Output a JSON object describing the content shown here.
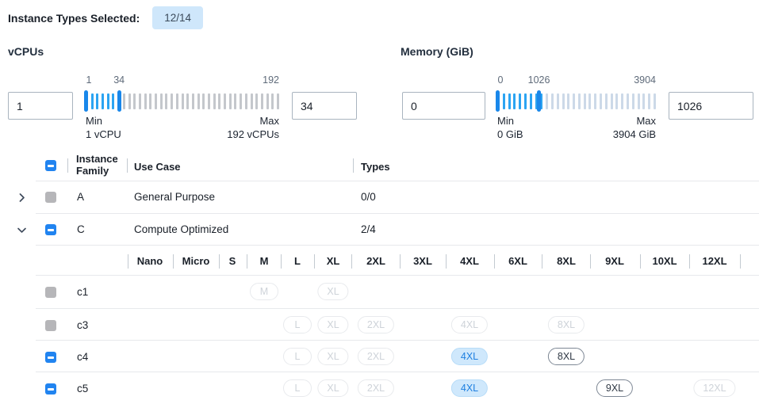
{
  "header": {
    "label": "Instance Types Selected:",
    "badge": "12/14"
  },
  "filters": {
    "vcpus": {
      "title": "vCPUs",
      "lower_value": "1",
      "upper_value": "34",
      "slider": {
        "min": 1,
        "max": 192,
        "lower": 1,
        "upper": 34,
        "labels": {
          "lower": "1",
          "upper": "34",
          "max": "192"
        }
      },
      "min_label": "Min",
      "min_sub": "1 vCPU",
      "max_label": "Max",
      "max_sub": "192 vCPUs"
    },
    "memory": {
      "title": "Memory (GiB)",
      "lower_value": "0",
      "upper_value": "1026",
      "slider": {
        "min": 0,
        "max": 3904,
        "lower": 0,
        "upper": 1026,
        "labels": {
          "lower": "0",
          "upper": "1026",
          "max": "3904"
        }
      },
      "min_label": "Min",
      "min_sub": "0 GiB",
      "max_label": "Max",
      "max_sub": "3904 GiB"
    }
  },
  "table": {
    "columns": {
      "family": "Instance Family",
      "use_case": "Use Case",
      "types": "Types"
    },
    "header_checkbox": "indeterminate",
    "family_rows": [
      {
        "family": "A",
        "use_case": "General Purpose",
        "types": "0/0",
        "expanded": false,
        "checkbox": "disabled"
      },
      {
        "family": "C",
        "use_case": "Compute Optimized",
        "types": "2/4",
        "expanded": true,
        "checkbox": "indeterminate"
      }
    ],
    "size_columns": [
      "Nano",
      "Micro",
      "S",
      "M",
      "L",
      "XL",
      "2XL",
      "3XL",
      "4XL",
      "6XL",
      "8XL",
      "9XL",
      "10XL",
      "12XL"
    ],
    "instance_rows": [
      {
        "name": "c1",
        "checkbox": "disabled",
        "sizes": [
          {
            "size": "M",
            "state": "disabled"
          },
          {
            "size": "XL",
            "state": "disabled"
          }
        ]
      },
      {
        "name": "c3",
        "checkbox": "disabled",
        "sizes": [
          {
            "size": "L",
            "state": "disabled"
          },
          {
            "size": "XL",
            "state": "disabled"
          },
          {
            "size": "2XL",
            "state": "disabled"
          },
          {
            "size": "4XL",
            "state": "disabled"
          },
          {
            "size": "8XL",
            "state": "disabled"
          }
        ]
      },
      {
        "name": "c4",
        "checkbox": "indeterminate",
        "sizes": [
          {
            "size": "L",
            "state": "disabled"
          },
          {
            "size": "XL",
            "state": "disabled"
          },
          {
            "size": "2XL",
            "state": "disabled"
          },
          {
            "size": "4XL",
            "state": "selected"
          },
          {
            "size": "8XL",
            "state": "available"
          }
        ]
      },
      {
        "name": "c5",
        "checkbox": "indeterminate",
        "sizes": [
          {
            "size": "L",
            "state": "disabled"
          },
          {
            "size": "XL",
            "state": "disabled"
          },
          {
            "size": "2XL",
            "state": "disabled"
          },
          {
            "size": "4XL",
            "state": "selected"
          },
          {
            "size": "9XL",
            "state": "available"
          },
          {
            "size": "12XL",
            "state": "disabled"
          }
        ]
      }
    ]
  },
  "colors": {
    "accent_blue": "#2184f0",
    "slider_handle": "#1987ea",
    "slider_tick_on": "#2ba4f2",
    "slider_tick_off_vcpu": "#c4c7cc",
    "slider_tick_off_memory": "#ccd9e8",
    "badge_bg": "#cfe7fb",
    "pill_selected_bg": "#cfe8fc",
    "pill_selected_text": "#1f80e0",
    "disabled_gray": "#b6b6b9"
  }
}
